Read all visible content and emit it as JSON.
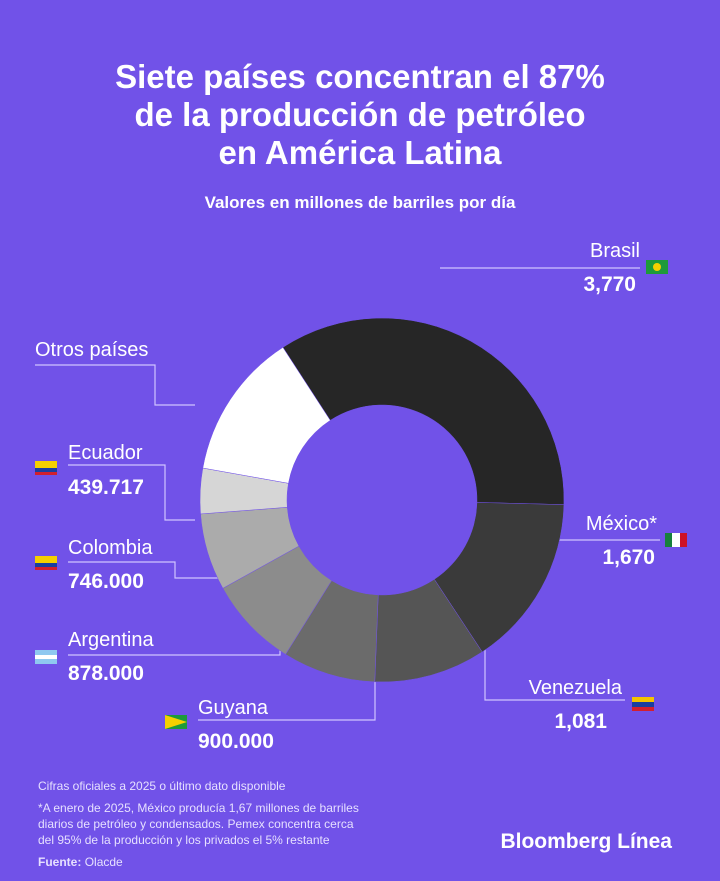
{
  "chart_data": {
    "type": "donut",
    "title": [
      "Siete países concentran el 87%",
      "de la producción de petróleo",
      "en América Latina"
    ],
    "subtitle": "Valores en millones de barriles por día",
    "categories": [
      "Brasil",
      "México*",
      "Venezuela",
      "Guyana",
      "Argentina",
      "Colombia",
      "Ecuador",
      "Otros países"
    ],
    "values": [
      3.77,
      1.67,
      1.081,
      0.9,
      0.878,
      0.746,
      0.439717,
      1.42
    ],
    "value_labels": [
      "3,770",
      "1,670",
      "1,081",
      "900.000",
      "878.000",
      "746.000",
      "439.717",
      null
    ],
    "colors": [
      "#262626",
      "#3a3a3a",
      "#555555",
      "#6b6b6b",
      "#8c8c8c",
      "#ababab",
      "#d6d6d6",
      "#ffffff"
    ]
  },
  "notes": [
    "Cifras oficiales a 2025 o último dato disponible",
    "*A enero de 2025, México producía 1,67 millones de barriles",
    "diarios de petróleo y condensados. Pemex concentra cerca",
    "del 95% de la producción y los privados el 5% restante"
  ],
  "source_label": "Fuente:",
  "source": "Olacde",
  "brand": "Bloomberg Línea"
}
